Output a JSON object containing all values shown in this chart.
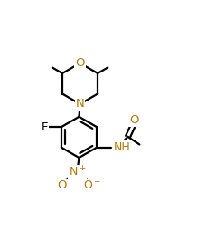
{
  "bg_color": "#ffffff",
  "bond_color": "#000000",
  "atom_colors": {
    "O": "#b87800",
    "N": "#b87800",
    "F": "#000000"
  },
  "lw": 1.6,
  "dbo": 0.013,
  "figsize": [
    2.18,
    2.77
  ],
  "dpi": 100
}
